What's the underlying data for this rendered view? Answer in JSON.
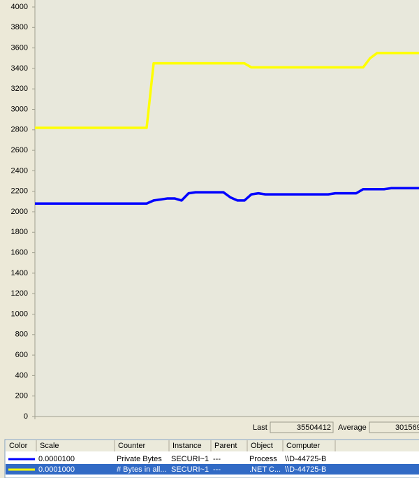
{
  "chart_data": {
    "type": "line",
    "categories": [
      null,
      null,
      null,
      null,
      null,
      null,
      null,
      null,
      null,
      null,
      null,
      null,
      null,
      null,
      null,
      null,
      null,
      null,
      null,
      null,
      null,
      null,
      null,
      null,
      null,
      null,
      null,
      null,
      null,
      null,
      null,
      null,
      null,
      null,
      null,
      null,
      null,
      null,
      null,
      null,
      null,
      null,
      null,
      null,
      null,
      null,
      null,
      null,
      null,
      null,
      null,
      null,
      null,
      null,
      null,
      null
    ],
    "series": [
      {
        "color": "#0000ff",
        "values": [
          2080,
          2080,
          2080,
          2080,
          2080,
          2080,
          2080,
          2080,
          2080,
          2080,
          2080,
          2080,
          2080,
          2080,
          2080,
          2080,
          2080,
          2110,
          2120,
          2130,
          2130,
          2110,
          2180,
          2190,
          2190,
          2190,
          2190,
          2190,
          2140,
          2110,
          2110,
          2170,
          2180,
          2170,
          2170,
          2170,
          2170,
          2170,
          2170,
          2170,
          2170,
          2170,
          2170,
          2180,
          2180,
          2180,
          2180,
          2220,
          2220,
          2220,
          2220,
          2230,
          2230,
          2230,
          2230,
          2230
        ]
      },
      {
        "color": "#ffff00",
        "values": [
          2820,
          2820,
          2820,
          2820,
          2820,
          2820,
          2820,
          2820,
          2820,
          2820,
          2820,
          2820,
          2820,
          2820,
          2820,
          2820,
          2820,
          3450,
          3450,
          3450,
          3450,
          3450,
          3450,
          3450,
          3450,
          3450,
          3450,
          3450,
          3450,
          3450,
          3450,
          3410,
          3410,
          3410,
          3410,
          3410,
          3410,
          3410,
          3410,
          3410,
          3410,
          3410,
          3410,
          3410,
          3410,
          3410,
          3410,
          3410,
          3500,
          3550,
          3550,
          3550,
          3550,
          3550,
          3550,
          3550
        ]
      }
    ],
    "ylim": [
      0,
      4000
    ],
    "yticks": [
      0,
      200,
      400,
      600,
      800,
      1000,
      1200,
      1400,
      1600,
      1800,
      2000,
      2200,
      2400,
      2600,
      2800,
      3000,
      3200,
      3400,
      3600,
      3800,
      4000
    ]
  },
  "status": {
    "last_label": "Last",
    "last_value": "35504412",
    "average_label": "Average",
    "average_value": "301569"
  },
  "table": {
    "columns": [
      "Color",
      "Scale",
      "Counter",
      "Instance",
      "Parent",
      "Object",
      "Computer"
    ],
    "rows": [
      [
        "0.0000100",
        "Private Bytes",
        "SECURI~1",
        "---",
        "Process",
        "\\\\D-44725-B"
      ],
      [
        "0.0001000",
        "# Bytes in all...",
        "SECURI~1",
        "---",
        ".NET C...",
        "\\\\D-44725-B"
      ]
    ]
  }
}
